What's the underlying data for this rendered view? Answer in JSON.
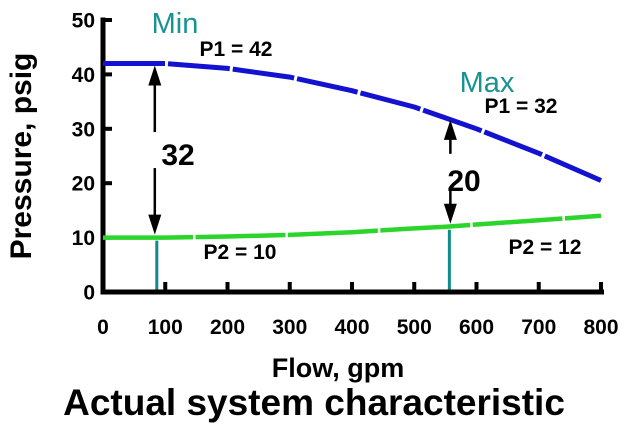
{
  "chart_data": {
    "type": "line",
    "title": "Actual system characteristic",
    "xlabel": "Flow, gpm",
    "ylabel": "Pressure, psig",
    "xlim": [
      0,
      800
    ],
    "ylim": [
      0,
      50
    ],
    "x_ticks": [
      0,
      100,
      200,
      300,
      400,
      500,
      600,
      700,
      800
    ],
    "y_ticks": [
      0,
      10,
      20,
      30,
      40,
      50
    ],
    "grid": false,
    "legend": "none",
    "series": [
      {
        "name": "P1",
        "color": "#1212d0",
        "x": [
          0,
          100,
          200,
          300,
          400,
          500,
          550,
          600,
          700,
          800
        ],
        "y": [
          42,
          42,
          41.1,
          39.5,
          37,
          34,
          32,
          30,
          25.5,
          20.5
        ]
      },
      {
        "name": "P2",
        "color": "#2bd52b",
        "x": [
          0,
          100,
          200,
          300,
          400,
          500,
          550,
          600,
          700,
          800
        ],
        "y": [
          10,
          10,
          10.2,
          10.5,
          11,
          11.7,
          12,
          12.4,
          13.2,
          14
        ]
      }
    ],
    "annotations": {
      "min": {
        "label": "Min",
        "point_label": "P1 = 42",
        "flow": 80,
        "delta_label": "32"
      },
      "max": {
        "label": "Max",
        "point_label": "P1 = 32",
        "flow": 550,
        "delta_label": "20"
      },
      "p2_min_label": "P2 = 10",
      "p2_max_label": "P2 = 12"
    }
  },
  "colors": {
    "curve_p1": "#1212d0",
    "curve_p2": "#2bd52b",
    "teal_text": "#189391",
    "guide_line": "#0e8c8c",
    "axis": "#000000",
    "background": "#ffffff"
  }
}
